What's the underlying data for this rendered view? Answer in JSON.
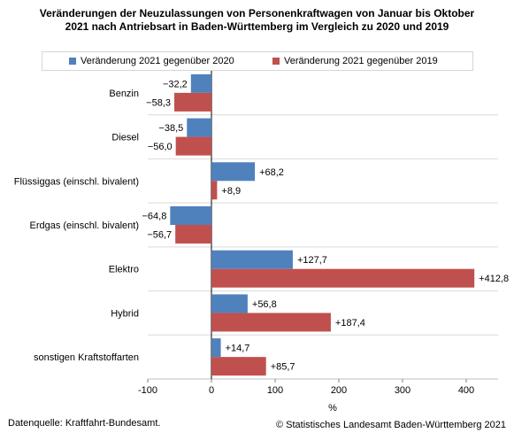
{
  "chart_data": {
    "type": "bar",
    "orientation": "horizontal",
    "title": "Veränderungen der Neuzulassungen von Personenkraftwagen von Januar bis Oktober 2021 nach Antriebsart in Baden-Württemberg im Vergleich zu 2020 und 2019",
    "categories": [
      "Benzin",
      "Diesel",
      "Flüssiggas (einschl. bivalent)",
      "Erdgas (einschl. bivalent)",
      "Elektro",
      "Hybrid",
      "sonstigen Kraftstoffarten"
    ],
    "series": [
      {
        "name": "Veränderung 2021 gegenüber 2020",
        "color": "#4f81bd",
        "values": [
          -32.2,
          -38.5,
          68.2,
          -64.8,
          127.7,
          56.8,
          14.7
        ],
        "labels": [
          "−32,2",
          "−38,5",
          "+68,2",
          "−64,8",
          "+127,7",
          "+56,8",
          "+14,7"
        ]
      },
      {
        "name": "Veränderung 2021 gegenüber 2019",
        "color": "#c0504d",
        "values": [
          -58.3,
          -56.0,
          8.9,
          -56.7,
          412.8,
          187.4,
          85.7
        ],
        "labels": [
          "−58,3",
          "−56,0",
          "+8,9",
          "−56,7",
          "+412,8",
          "+187,4",
          "+85,7"
        ]
      }
    ],
    "xlim": [
      -100,
      450
    ],
    "xticks": [
      -100,
      0,
      100,
      200,
      300,
      400
    ],
    "xtick_labels": [
      "-100",
      "0",
      "100",
      "200",
      "300",
      "400"
    ],
    "xlabel": "%",
    "ylabel": "",
    "grid": "horizontal separators between categories",
    "legend_position": "top"
  },
  "footer": {
    "source": "Datenquelle: Kraftfahrt-Bundesamt.",
    "copyright": "© Statistisches Landesamt Baden-Württemberg 2021"
  }
}
